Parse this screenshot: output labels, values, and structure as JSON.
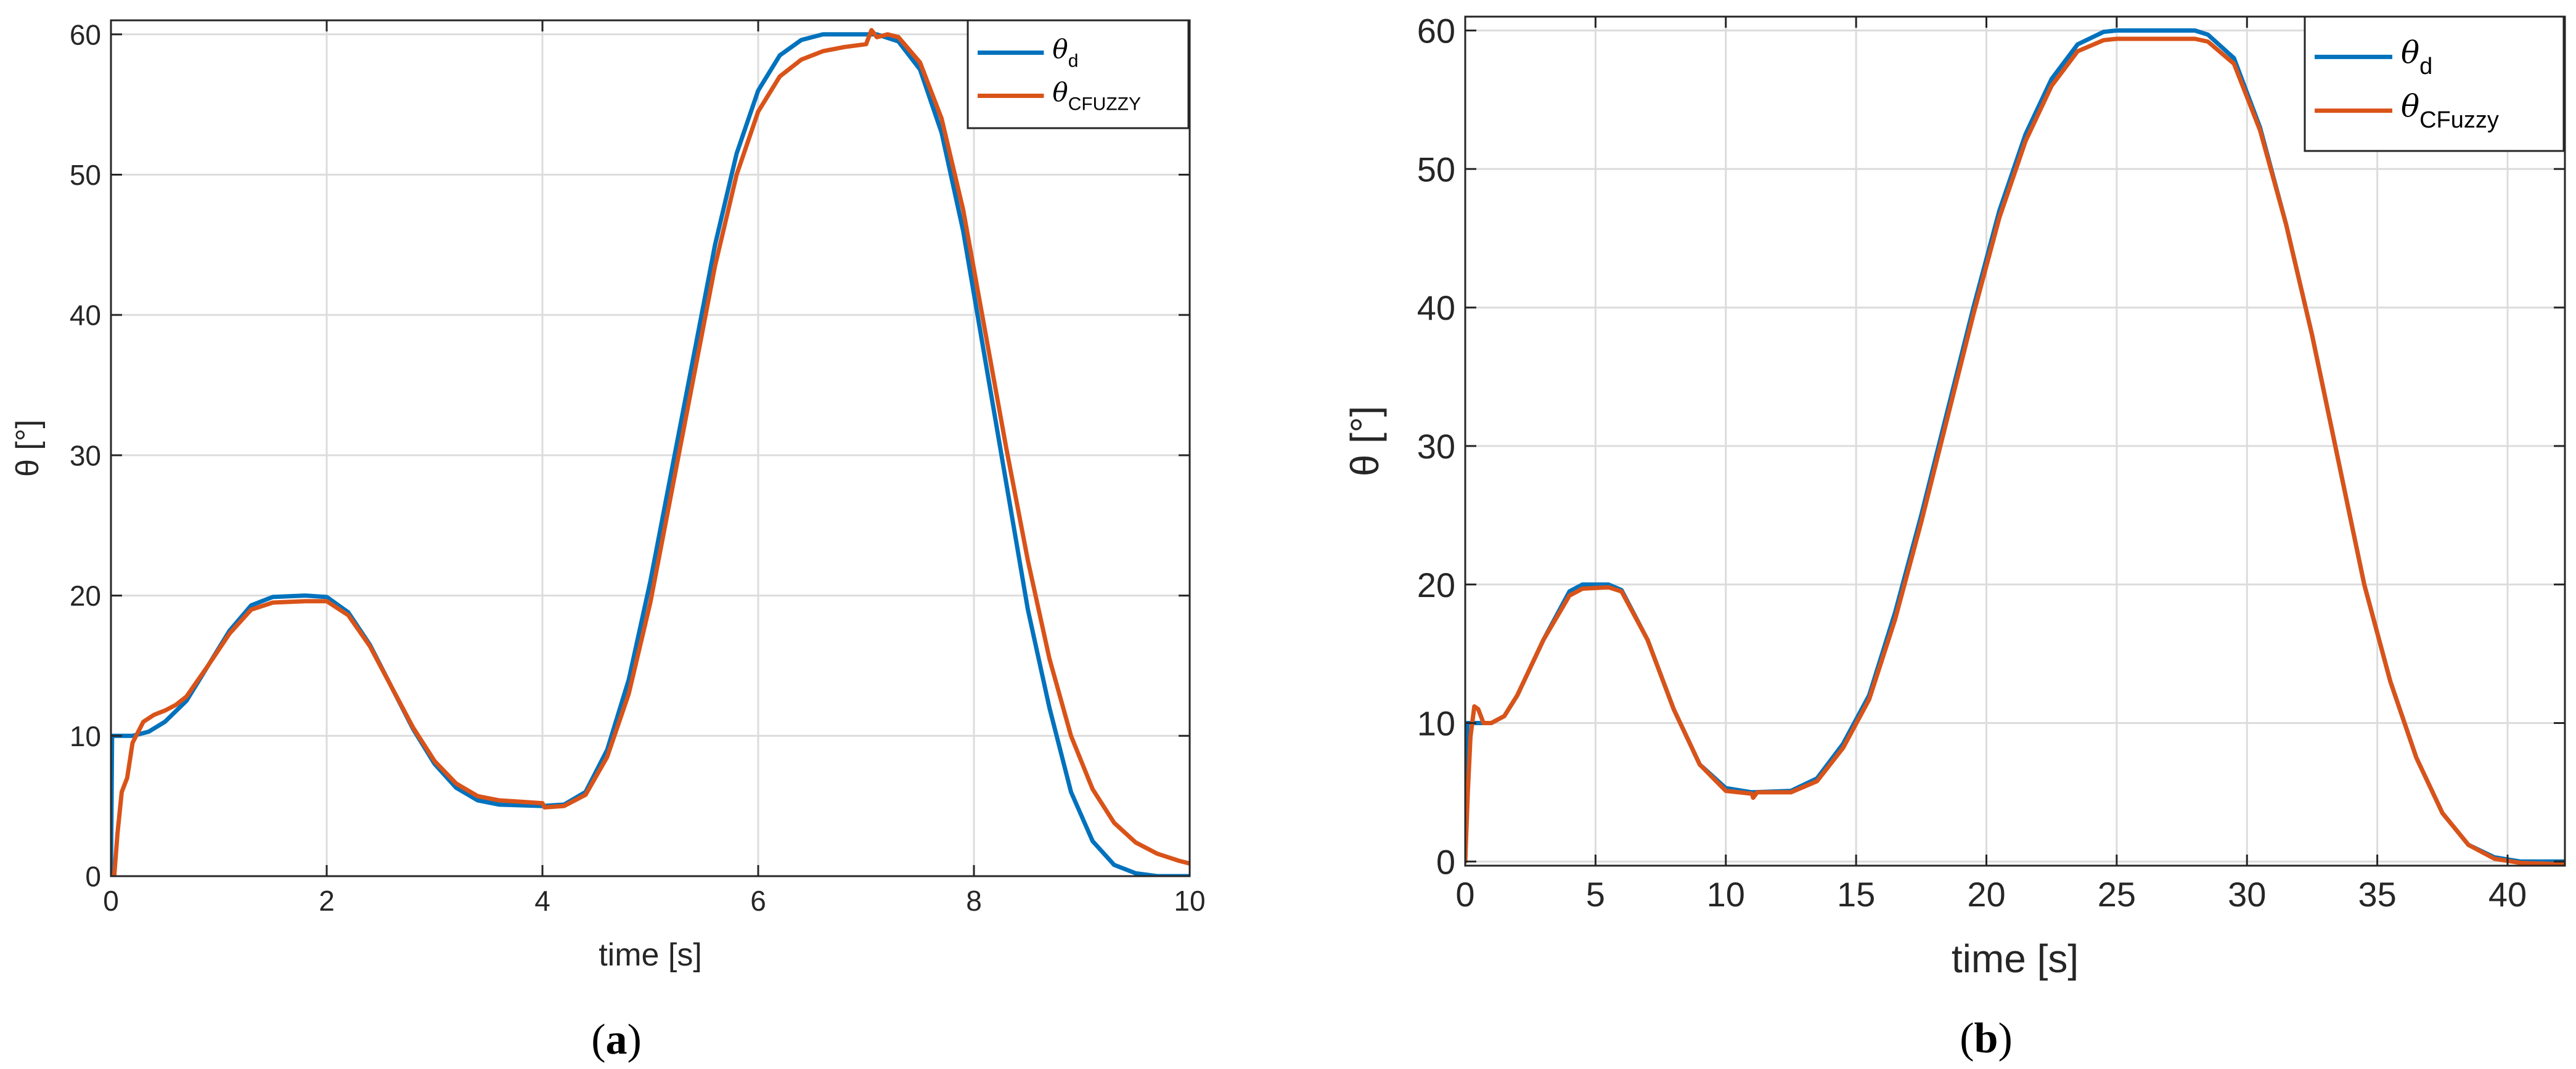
{
  "chart_data": [
    {
      "type": "line",
      "panel_label": "a",
      "xlabel": "time [s]",
      "ylabel": "θ [°]",
      "xlim": [
        0,
        10
      ],
      "ylim": [
        0,
        61
      ],
      "xticks": [
        0,
        2,
        4,
        6,
        8,
        10
      ],
      "yticks": [
        0,
        10,
        20,
        30,
        40,
        50,
        60
      ],
      "grid": true,
      "legend_position": "top-right",
      "series": [
        {
          "name": "θ_d",
          "legend_main": "θ",
          "legend_sub": "d",
          "color": "#0072BD",
          "points": [
            [
              0,
              0
            ],
            [
              0.01,
              10
            ],
            [
              0.2,
              10
            ],
            [
              0.35,
              10.3
            ],
            [
              0.5,
              11
            ],
            [
              0.7,
              12.5
            ],
            [
              0.9,
              15
            ],
            [
              1.1,
              17.5
            ],
            [
              1.3,
              19.3
            ],
            [
              1.5,
              19.9
            ],
            [
              1.8,
              20
            ],
            [
              2.0,
              19.9
            ],
            [
              2.2,
              18.8
            ],
            [
              2.4,
              16.5
            ],
            [
              2.6,
              13.5
            ],
            [
              2.8,
              10.5
            ],
            [
              3.0,
              8
            ],
            [
              3.2,
              6.3
            ],
            [
              3.4,
              5.4
            ],
            [
              3.6,
              5.1
            ],
            [
              4.0,
              5.0
            ],
            [
              4.2,
              5.1
            ],
            [
              4.4,
              6
            ],
            [
              4.6,
              9
            ],
            [
              4.8,
              14
            ],
            [
              5.0,
              21
            ],
            [
              5.2,
              29
            ],
            [
              5.4,
              37
            ],
            [
              5.6,
              45
            ],
            [
              5.8,
              51.5
            ],
            [
              6.0,
              56
            ],
            [
              6.2,
              58.5
            ],
            [
              6.4,
              59.6
            ],
            [
              6.6,
              60
            ],
            [
              7.1,
              60
            ],
            [
              7.3,
              59.5
            ],
            [
              7.5,
              57.5
            ],
            [
              7.7,
              53
            ],
            [
              7.9,
              46
            ],
            [
              8.1,
              37
            ],
            [
              8.3,
              28
            ],
            [
              8.5,
              19
            ],
            [
              8.7,
              12
            ],
            [
              8.9,
              6
            ],
            [
              9.1,
              2.5
            ],
            [
              9.3,
              0.8
            ],
            [
              9.5,
              0.2
            ],
            [
              9.7,
              0
            ],
            [
              10,
              0
            ]
          ]
        },
        {
          "name": "θ_CFUZZY",
          "legend_main": "θ",
          "legend_sub": "CFUZZY",
          "color": "#D95319",
          "points": [
            [
              0,
              0
            ],
            [
              0.03,
              0
            ],
            [
              0.06,
              3
            ],
            [
              0.1,
              6
            ],
            [
              0.15,
              7
            ],
            [
              0.2,
              9.5
            ],
            [
              0.3,
              11
            ],
            [
              0.4,
              11.5
            ],
            [
              0.5,
              11.8
            ],
            [
              0.6,
              12.2
            ],
            [
              0.7,
              12.8
            ],
            [
              0.9,
              15
            ],
            [
              1.1,
              17.3
            ],
            [
              1.3,
              19
            ],
            [
              1.5,
              19.5
            ],
            [
              1.8,
              19.6
            ],
            [
              2.0,
              19.6
            ],
            [
              2.2,
              18.6
            ],
            [
              2.4,
              16.4
            ],
            [
              2.6,
              13.5
            ],
            [
              2.8,
              10.6
            ],
            [
              3.0,
              8.2
            ],
            [
              3.2,
              6.6
            ],
            [
              3.4,
              5.7
            ],
            [
              3.6,
              5.4
            ],
            [
              3.8,
              5.3
            ],
            [
              4.0,
              5.2
            ],
            [
              4.02,
              4.9
            ],
            [
              4.2,
              5.0
            ],
            [
              4.4,
              5.8
            ],
            [
              4.6,
              8.5
            ],
            [
              4.8,
              13
            ],
            [
              5.0,
              19.5
            ],
            [
              5.2,
              27.5
            ],
            [
              5.4,
              35.5
            ],
            [
              5.6,
              43.5
            ],
            [
              5.8,
              50
            ],
            [
              6.0,
              54.5
            ],
            [
              6.2,
              57
            ],
            [
              6.4,
              58.2
            ],
            [
              6.6,
              58.8
            ],
            [
              6.8,
              59.1
            ],
            [
              7.0,
              59.3
            ],
            [
              7.05,
              60.3
            ],
            [
              7.1,
              59.8
            ],
            [
              7.2,
              60
            ],
            [
              7.3,
              59.8
            ],
            [
              7.5,
              58
            ],
            [
              7.7,
              54
            ],
            [
              7.9,
              47.5
            ],
            [
              8.1,
              39
            ],
            [
              8.3,
              30.5
            ],
            [
              8.5,
              22.5
            ],
            [
              8.7,
              15.5
            ],
            [
              8.9,
              10
            ],
            [
              9.1,
              6.2
            ],
            [
              9.3,
              3.8
            ],
            [
              9.5,
              2.4
            ],
            [
              9.7,
              1.6
            ],
            [
              9.9,
              1.1
            ],
            [
              10,
              0.9
            ]
          ]
        }
      ]
    },
    {
      "type": "line",
      "panel_label": "b",
      "xlabel": "time [s]",
      "ylabel": "θ [°]",
      "xlim": [
        0,
        42.2
      ],
      "ylim": [
        -0.3,
        61
      ],
      "xticks": [
        0,
        5,
        10,
        15,
        20,
        25,
        30,
        35,
        40
      ],
      "yticks": [
        0,
        10,
        20,
        30,
        40,
        50,
        60
      ],
      "grid": true,
      "legend_position": "top-right",
      "series": [
        {
          "name": "θ_d",
          "legend_main": "θ",
          "legend_sub": "d",
          "color": "#0072BD",
          "points": [
            [
              0,
              0
            ],
            [
              0.08,
              10
            ],
            [
              1,
              10
            ],
            [
              1.5,
              10.5
            ],
            [
              2,
              12
            ],
            [
              3,
              16
            ],
            [
              4,
              19.5
            ],
            [
              4.5,
              20
            ],
            [
              5.5,
              20
            ],
            [
              6,
              19.6
            ],
            [
              7,
              16
            ],
            [
              8,
              11
            ],
            [
              9,
              7
            ],
            [
              10,
              5.3
            ],
            [
              11,
              5
            ],
            [
              12.5,
              5.1
            ],
            [
              13.5,
              6
            ],
            [
              14.5,
              8.5
            ],
            [
              15.5,
              12
            ],
            [
              16.5,
              18
            ],
            [
              17.5,
              25
            ],
            [
              18.5,
              32.5
            ],
            [
              19.5,
              40
            ],
            [
              20.5,
              47
            ],
            [
              21.5,
              52.5
            ],
            [
              22.5,
              56.5
            ],
            [
              23.5,
              59
            ],
            [
              24.5,
              59.9
            ],
            [
              25,
              60
            ],
            [
              28,
              60
            ],
            [
              28.5,
              59.7
            ],
            [
              29.5,
              58
            ],
            [
              30.5,
              53
            ],
            [
              31.5,
              46
            ],
            [
              32.5,
              38
            ],
            [
              33.5,
              29
            ],
            [
              34.5,
              20
            ],
            [
              35.5,
              13
            ],
            [
              36.5,
              7.5
            ],
            [
              37.5,
              3.5
            ],
            [
              38.5,
              1.2
            ],
            [
              39.5,
              0.3
            ],
            [
              40.5,
              0
            ],
            [
              42.2,
              0
            ]
          ]
        },
        {
          "name": "θ_CFuzzy",
          "legend_main": "θ",
          "legend_sub": "CFuzzy",
          "color": "#D95319",
          "points": [
            [
              0,
              0
            ],
            [
              0.1,
              5
            ],
            [
              0.2,
              9
            ],
            [
              0.35,
              11.2
            ],
            [
              0.5,
              11
            ],
            [
              0.7,
              10
            ],
            [
              1,
              10
            ],
            [
              1.5,
              10.5
            ],
            [
              2,
              12
            ],
            [
              3,
              16
            ],
            [
              4,
              19.2
            ],
            [
              4.5,
              19.7
            ],
            [
              5.5,
              19.8
            ],
            [
              6,
              19.5
            ],
            [
              7,
              16
            ],
            [
              8,
              11
            ],
            [
              9,
              7
            ],
            [
              10,
              5.1
            ],
            [
              11,
              4.9
            ],
            [
              11.05,
              4.6
            ],
            [
              11.2,
              5
            ],
            [
              12.5,
              5
            ],
            [
              13.5,
              5.8
            ],
            [
              14.5,
              8.2
            ],
            [
              15.5,
              11.7
            ],
            [
              16.5,
              17.5
            ],
            [
              17.5,
              24.5
            ],
            [
              18.5,
              32
            ],
            [
              19.5,
              39.5
            ],
            [
              20.5,
              46.5
            ],
            [
              21.5,
              52
            ],
            [
              22.5,
              56
            ],
            [
              23.5,
              58.5
            ],
            [
              24.5,
              59.3
            ],
            [
              25,
              59.4
            ],
            [
              28,
              59.4
            ],
            [
              28.5,
              59.2
            ],
            [
              29.5,
              57.6
            ],
            [
              30.5,
              52.8
            ],
            [
              31.5,
              46
            ],
            [
              32.5,
              38
            ],
            [
              33.5,
              29
            ],
            [
              34.5,
              20
            ],
            [
              35.5,
              13
            ],
            [
              36.5,
              7.5
            ],
            [
              37.5,
              3.5
            ],
            [
              38.5,
              1.2
            ],
            [
              39.5,
              0.2
            ],
            [
              40.5,
              -0.1
            ],
            [
              42.2,
              -0.2
            ]
          ]
        }
      ]
    }
  ]
}
